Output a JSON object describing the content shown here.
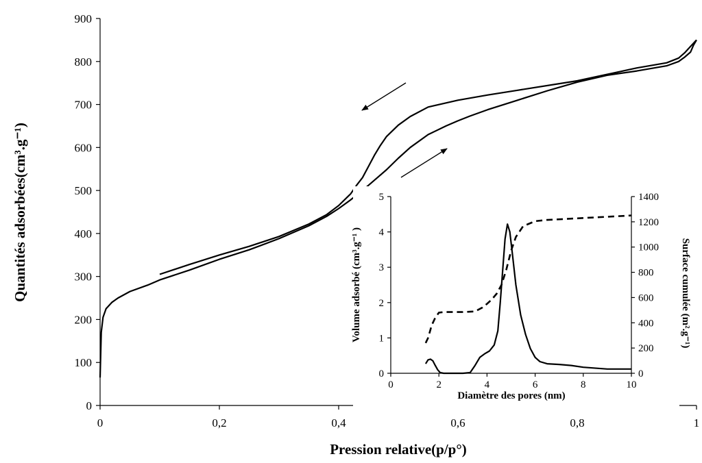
{
  "chart_data": [
    {
      "type": "line",
      "xlabel": "Pression relative(p/p°)",
      "ylabel": "Quantités adsorbées(cm³.g⁻¹)",
      "xlim": [
        0,
        1
      ],
      "ylim": [
        0,
        900
      ],
      "xticks": [
        0,
        0.2,
        0.4,
        0.6,
        0.8,
        1
      ],
      "xtick_labels": [
        "0",
        "0,2",
        "0,4",
        "0,6",
        "0,8",
        "1"
      ],
      "yticks": [
        0,
        100,
        200,
        300,
        400,
        500,
        600,
        700,
        800,
        900
      ],
      "ytick_labels": [
        "0",
        "100",
        "200",
        "300",
        "400",
        "500",
        "600",
        "700",
        "800",
        "900"
      ],
      "grid": false,
      "series": [
        {
          "x": [
            0.0,
            0.002,
            0.005,
            0.01,
            0.02,
            0.03,
            0.05,
            0.08,
            0.1,
            0.15,
            0.2,
            0.25,
            0.3,
            0.35,
            0.38,
            0.4,
            0.42,
            0.45,
            0.48,
            0.5,
            0.52,
            0.55,
            0.58,
            0.6,
            0.62,
            0.65,
            0.7,
            0.75,
            0.8,
            0.85,
            0.9,
            0.95,
            0.97,
            0.98,
            0.99,
            0.995,
            1.0
          ],
          "y": [
            65,
            170,
            205,
            225,
            240,
            250,
            265,
            280,
            292,
            315,
            340,
            362,
            388,
            418,
            440,
            458,
            478,
            512,
            548,
            575,
            600,
            630,
            650,
            662,
            673,
            688,
            710,
            732,
            752,
            768,
            778,
            790,
            800,
            810,
            822,
            838,
            850
          ]
        },
        {
          "x": [
            0.1,
            0.15,
            0.2,
            0.25,
            0.3,
            0.35,
            0.38,
            0.4,
            0.42,
            0.43,
            0.44,
            0.45,
            0.46,
            0.47,
            0.48,
            0.5,
            0.52,
            0.55,
            0.6,
            0.65,
            0.7,
            0.8,
            0.9,
            0.95,
            0.97,
            0.98,
            0.99,
            1.0
          ],
          "y": [
            305,
            328,
            350,
            370,
            393,
            422,
            444,
            465,
            492,
            512,
            530,
            556,
            582,
            605,
            625,
            652,
            672,
            694,
            710,
            722,
            733,
            755,
            785,
            797,
            808,
            820,
            835,
            850
          ]
        }
      ],
      "annotations": [
        "arrow-desorption",
        "arrow-adsorption"
      ]
    },
    {
      "type": "line",
      "xlabel": "Diamètre des pores (nm)",
      "ylabel": "Volume adsorbé (cm³.g⁻¹ )",
      "y2label": "Surface cumulée (m².g⁻¹)",
      "xlim": [
        0,
        10
      ],
      "ylim": [
        0,
        5
      ],
      "y2lim": [
        0,
        1400
      ],
      "xticks": [
        0,
        2,
        4,
        6,
        8,
        10
      ],
      "xtick_labels": [
        "0",
        "2",
        "4",
        "6",
        "8",
        "10"
      ],
      "yticks": [
        0,
        1,
        2,
        3,
        4,
        5
      ],
      "ytick_labels": [
        "0",
        "1",
        "2",
        "3",
        "4",
        "5"
      ],
      "y2ticks": [
        0,
        200,
        400,
        600,
        800,
        1000,
        1200,
        1400
      ],
      "y2tick_labels": [
        "0",
        "200",
        "400",
        "600",
        "800",
        "1000",
        "1200",
        "1400"
      ],
      "series": [
        {
          "axis": "left",
          "style": "solid",
          "x": [
            1.45,
            1.55,
            1.65,
            1.75,
            1.85,
            1.95,
            2.05,
            2.2,
            2.5,
            3.0,
            3.3,
            3.5,
            3.7,
            3.9,
            4.1,
            4.3,
            4.45,
            4.55,
            4.65,
            4.75,
            4.85,
            4.95,
            5.05,
            5.2,
            5.4,
            5.6,
            5.8,
            6.0,
            6.2,
            6.5,
            7.0,
            7.5,
            8.0,
            9.0,
            10.0
          ],
          "y": [
            0.27,
            0.38,
            0.4,
            0.35,
            0.22,
            0.1,
            0.02,
            0.0,
            0.0,
            0.0,
            0.02,
            0.22,
            0.45,
            0.55,
            0.63,
            0.8,
            1.2,
            2.0,
            2.9,
            3.8,
            4.22,
            4.0,
            3.4,
            2.5,
            1.65,
            1.1,
            0.7,
            0.45,
            0.33,
            0.27,
            0.25,
            0.22,
            0.17,
            0.12,
            0.12
          ]
        },
        {
          "axis": "right",
          "style": "dashed",
          "x": [
            1.45,
            1.55,
            1.7,
            1.85,
            2.0,
            2.2,
            2.5,
            3.0,
            3.5,
            3.8,
            4.0,
            4.2,
            4.4,
            4.6,
            4.8,
            5.0,
            5.2,
            5.5,
            6.0,
            6.5,
            7.0,
            8.0,
            9.0,
            10.0
          ],
          "y": [
            240,
            280,
            380,
            440,
            480,
            485,
            485,
            485,
            490,
            520,
            550,
            585,
            630,
            700,
            820,
            970,
            1080,
            1165,
            1205,
            1215,
            1220,
            1230,
            1240,
            1250
          ]
        }
      ]
    }
  ]
}
